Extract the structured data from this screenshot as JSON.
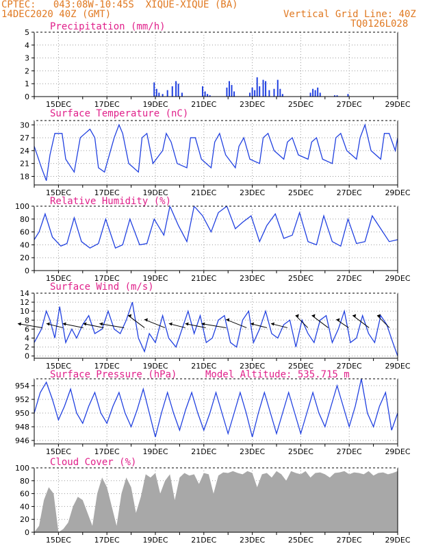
{
  "header": {
    "line1": "CPTEC:   043:08W-10:45S  XIQUE-XIQUE (BA)",
    "line2": "14DEC2020 40Z (GMT)",
    "right1": "Vertical Grid Line: 40Z",
    "right2": "TQ0126L028"
  },
  "colors": {
    "header": "#e07820",
    "title": "#e0208a",
    "line": "#2040e0",
    "cloud": "#a8a8a8"
  },
  "chart_data": [
    {
      "type": "bar",
      "title": "Precipitation (mm/h)",
      "ylim": [
        0,
        5
      ],
      "yticks": [
        0,
        1,
        2,
        3,
        4,
        5
      ],
      "xticks": [
        "15DEC",
        "17DEC",
        "19DEC",
        "21DEC",
        "23DEC",
        "25DEC",
        "27DEC",
        "29DEC"
      ],
      "grid": true,
      "x": [
        4.95,
        5.05,
        5.15,
        5.3,
        5.5,
        5.7,
        5.85,
        5.95,
        6.1,
        6.95,
        7.05,
        7.15,
        7.25,
        7.95,
        8.05,
        8.15,
        8.25,
        8.9,
        9.0,
        9.1,
        9.2,
        9.3,
        9.45,
        9.55,
        9.7,
        9.9,
        10.05,
        10.15,
        10.25,
        11.4,
        11.5,
        11.6,
        11.7,
        11.8,
        12.4,
        12.5,
        12.95
      ],
      "values": [
        1.1,
        0.6,
        0.3,
        0.2,
        0.5,
        0.8,
        1.2,
        1.0,
        0.3,
        0.8,
        0.4,
        0.2,
        0.1,
        0.7,
        1.2,
        0.9,
        0.4,
        0.3,
        0.7,
        0.5,
        1.5,
        0.8,
        1.3,
        1.2,
        0.5,
        0.6,
        1.3,
        0.6,
        0.2,
        0.3,
        0.6,
        0.5,
        0.7,
        0.3,
        0.1,
        0.1,
        0.2
      ]
    },
    {
      "type": "line",
      "title": "Surface Temperature (nC)",
      "ylim": [
        16,
        31
      ],
      "yticks": [
        18,
        21,
        24,
        27,
        30
      ],
      "xticks": [
        "15DEC",
        "17DEC",
        "19DEC",
        "21DEC",
        "23DEC",
        "25DEC",
        "27DEC",
        "29DEC"
      ],
      "grid": true,
      "x": [
        0,
        0.3,
        0.5,
        0.65,
        0.85,
        1.15,
        1.3,
        1.65,
        1.9,
        2.3,
        2.5,
        2.65,
        2.9,
        3.3,
        3.5,
        3.65,
        3.9,
        4.3,
        4.45,
        4.65,
        4.9,
        5.3,
        5.45,
        5.65,
        5.9,
        6.3,
        6.45,
        6.65,
        6.9,
        7.3,
        7.45,
        7.65,
        7.9,
        8.3,
        8.45,
        8.65,
        8.9,
        9.3,
        9.45,
        9.65,
        9.9,
        10.3,
        10.45,
        10.65,
        10.9,
        11.3,
        11.45,
        11.65,
        11.9,
        12.3,
        12.45,
        12.65,
        12.9,
        13.3,
        13.45,
        13.65,
        13.9,
        14.3,
        14.45,
        14.65,
        14.9,
        15
      ],
      "values": [
        25,
        20,
        17,
        23,
        28,
        28,
        22,
        19,
        27,
        29,
        27,
        20,
        19,
        27,
        30,
        28,
        21,
        19,
        27,
        28,
        21,
        24,
        28,
        26,
        21,
        20,
        27,
        27,
        22,
        20,
        26,
        28,
        23,
        20,
        25,
        27,
        22,
        21,
        27,
        28,
        24,
        22,
        26,
        27,
        23,
        22,
        26,
        27,
        22,
        21,
        27,
        28,
        24,
        22,
        27,
        30,
        24,
        22,
        28,
        28,
        24,
        27
      ]
    },
    {
      "type": "line",
      "title": "Relative Humidity (%)",
      "ylim": [
        0,
        100
      ],
      "yticks": [
        0,
        20,
        40,
        60,
        80,
        100
      ],
      "xticks": [
        "15DEC",
        "17DEC",
        "19DEC",
        "21DEC",
        "23DEC",
        "25DEC",
        "27DEC",
        "29DEC"
      ],
      "grid": true,
      "x": [
        0,
        0.2,
        0.45,
        0.75,
        1.1,
        1.35,
        1.65,
        1.95,
        2.3,
        2.65,
        2.95,
        3.35,
        3.65,
        3.95,
        4.35,
        4.65,
        4.95,
        5.35,
        5.6,
        5.95,
        6.3,
        6.6,
        6.95,
        7.3,
        7.6,
        7.95,
        8.3,
        8.6,
        8.95,
        9.3,
        9.6,
        9.95,
        10.3,
        10.65,
        10.95,
        11.3,
        11.65,
        11.95,
        12.3,
        12.65,
        12.95,
        13.3,
        13.65,
        13.95,
        14.3,
        14.65,
        15
      ],
      "values": [
        48,
        60,
        88,
        52,
        38,
        42,
        82,
        45,
        35,
        42,
        80,
        35,
        40,
        80,
        40,
        42,
        80,
        55,
        100,
        70,
        45,
        100,
        85,
        60,
        90,
        100,
        65,
        75,
        85,
        45,
        70,
        88,
        50,
        55,
        90,
        45,
        40,
        85,
        45,
        38,
        80,
        42,
        45,
        85,
        65,
        45,
        48
      ]
    },
    {
      "type": "line",
      "title": "Surface Wind (m/s)",
      "ylim": [
        -0.5,
        14
      ],
      "yticks": [
        0,
        2,
        4,
        6,
        8,
        10,
        12,
        14
      ],
      "xticks": [
        "15DEC",
        "17DEC",
        "19DEC",
        "21DEC",
        "23DEC",
        "25DEC",
        "27DEC",
        "29DEC"
      ],
      "grid": true,
      "x": [
        0,
        0.3,
        0.5,
        0.65,
        0.85,
        1.05,
        1.3,
        1.55,
        1.75,
        2.0,
        2.25,
        2.5,
        2.8,
        3.05,
        3.3,
        3.55,
        3.8,
        4.05,
        4.3,
        4.55,
        4.75,
        5.0,
        5.3,
        5.55,
        5.85,
        6.1,
        6.35,
        6.6,
        6.85,
        7.1,
        7.35,
        7.6,
        7.85,
        8.1,
        8.35,
        8.6,
        8.85,
        9.05,
        9.3,
        9.55,
        9.8,
        10.05,
        10.3,
        10.55,
        10.8,
        11.05,
        11.3,
        11.55,
        11.8,
        12.05,
        12.3,
        12.55,
        12.8,
        13.05,
        13.3,
        13.55,
        13.8,
        14.05,
        14.3,
        14.55,
        14.8,
        15
      ],
      "values": [
        3,
        6,
        10,
        8,
        4,
        11,
        3,
        6,
        4,
        7,
        9,
        5,
        6,
        10,
        6,
        5,
        8,
        12,
        4,
        1,
        5,
        3,
        9,
        4,
        2,
        6,
        10,
        5,
        9,
        3,
        4,
        8,
        9,
        3,
        2,
        8,
        10,
        3,
        6,
        10,
        5,
        4,
        7,
        8,
        2,
        8,
        5,
        3,
        8,
        9,
        3,
        6,
        10,
        3,
        4,
        9,
        5,
        3,
        9,
        7,
        3,
        0
      ],
      "barbs_u": [
        -6,
        -4,
        -5,
        -5,
        -6,
        -4,
        -5,
        -4,
        -5,
        -6,
        -5,
        -4,
        -4,
        -3,
        -4,
        -3,
        -4,
        -3
      ],
      "barbs_v": [
        -1,
        -1,
        -1,
        -1,
        -1,
        -3,
        -2,
        -1,
        -1,
        -1,
        -2,
        -1,
        -1,
        -3,
        -3,
        -2,
        -3,
        -3
      ]
    },
    {
      "type": "line",
      "title": "Surface Pressure (hPa)",
      "ylim": [
        945.5,
        955
      ],
      "yticks": [
        946,
        948,
        950,
        952,
        954
      ],
      "xticks": [
        "15DEC",
        "17DEC",
        "19DEC",
        "21DEC",
        "23DEC",
        "25DEC",
        "27DEC",
        "29DEC"
      ],
      "grid": true,
      "x": [
        0,
        0.25,
        0.5,
        0.75,
        1.0,
        1.25,
        1.5,
        1.75,
        2.0,
        2.25,
        2.5,
        2.75,
        3.0,
        3.25,
        3.5,
        3.75,
        4.0,
        4.25,
        4.5,
        4.75,
        5.0,
        5.25,
        5.5,
        5.75,
        6.0,
        6.25,
        6.5,
        6.75,
        7.0,
        7.25,
        7.5,
        7.75,
        8.0,
        8.25,
        8.5,
        8.75,
        9.0,
        9.25,
        9.5,
        9.75,
        10.0,
        10.25,
        10.5,
        10.75,
        11.0,
        11.25,
        11.5,
        11.75,
        12.0,
        12.25,
        12.5,
        12.75,
        13.0,
        13.25,
        13.5,
        13.75,
        14.0,
        14.25,
        14.5,
        14.75,
        15
      ],
      "values": [
        950,
        953,
        954.5,
        952,
        949,
        951,
        953.5,
        950,
        948.5,
        951,
        953,
        950,
        948.5,
        951,
        953,
        950,
        948,
        950.5,
        953.5,
        950,
        946.5,
        950,
        953,
        950,
        947.5,
        950.5,
        953,
        950,
        947.5,
        950,
        953,
        950,
        947,
        950,
        953,
        950,
        946.5,
        950,
        953,
        950,
        947,
        950,
        953,
        950,
        947,
        950,
        953,
        950,
        948,
        951,
        954,
        951,
        948,
        951,
        955,
        950,
        948,
        951,
        953,
        947.5,
        950
      ]
    },
    {
      "type": "area",
      "title": "Cloud Cover (%)",
      "ylim": [
        0,
        100
      ],
      "yticks": [
        0,
        20,
        40,
        60,
        80,
        100
      ],
      "xticks": [
        "15DEC",
        "17DEC",
        "19DEC",
        "21DEC",
        "23DEC",
        "25DEC",
        "27DEC",
        "29DEC"
      ],
      "grid": true,
      "x": [
        0,
        0.2,
        0.4,
        0.6,
        0.8,
        1.0,
        1.2,
        1.4,
        1.6,
        1.8,
        2.0,
        2.2,
        2.4,
        2.6,
        2.8,
        3.0,
        3.2,
        3.4,
        3.6,
        3.8,
        4.0,
        4.2,
        4.4,
        4.6,
        4.8,
        5.0,
        5.2,
        5.4,
        5.6,
        5.8,
        6.0,
        6.2,
        6.4,
        6.6,
        6.8,
        7.0,
        7.2,
        7.4,
        7.6,
        7.8,
        8.0,
        8.2,
        8.4,
        8.6,
        8.8,
        9.0,
        9.2,
        9.4,
        9.6,
        9.8,
        10.0,
        10.2,
        10.4,
        10.6,
        10.8,
        11.0,
        11.2,
        11.4,
        11.6,
        11.8,
        12.0,
        12.2,
        12.4,
        12.6,
        12.8,
        13.0,
        13.2,
        13.4,
        13.6,
        13.8,
        14.0,
        14.2,
        14.4,
        14.6,
        14.8,
        15
      ],
      "values": [
        0,
        10,
        50,
        70,
        60,
        0,
        5,
        15,
        40,
        55,
        50,
        30,
        10,
        60,
        85,
        70,
        40,
        10,
        60,
        85,
        70,
        30,
        55,
        90,
        85,
        92,
        60,
        80,
        90,
        50,
        85,
        92,
        88,
        90,
        75,
        92,
        90,
        60,
        88,
        93,
        92,
        95,
        92,
        90,
        95,
        92,
        70,
        90,
        92,
        85,
        95,
        90,
        80,
        95,
        92,
        90,
        95,
        85,
        92,
        93,
        90,
        85,
        92,
        93,
        95,
        90,
        93,
        92,
        90,
        95,
        88,
        92,
        93,
        90,
        92,
        95
      ]
    }
  ]
}
